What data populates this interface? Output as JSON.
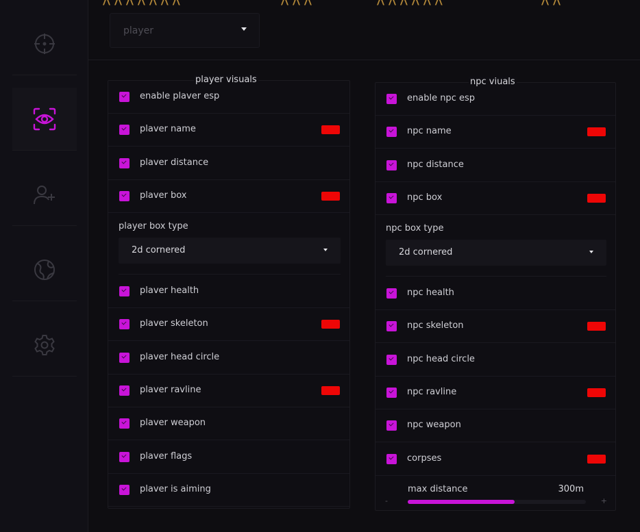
{
  "accent_color": "#c814d8",
  "swatch_color": "#ee0606",
  "sidebar": {
    "items": [
      {
        "icon": "crosshair-icon",
        "active": false
      },
      {
        "icon": "eye-scan-icon",
        "active": true
      },
      {
        "icon": "user-plus-icon",
        "active": false
      },
      {
        "icon": "globe-icon",
        "active": false
      },
      {
        "icon": "gear-icon",
        "active": false
      }
    ]
  },
  "header": {
    "dropdown_value": "player"
  },
  "player_panel": {
    "title": "player visuals",
    "rows_top": [
      {
        "label": "enable plaver esp",
        "checked": true,
        "color": false
      },
      {
        "label": "plaver name",
        "checked": true,
        "color": true
      },
      {
        "label": "plaver distance",
        "checked": true,
        "color": false
      },
      {
        "label": "plaver box",
        "checked": true,
        "color": true
      }
    ],
    "box_type_label": "player box type",
    "box_type_value": "2d cornered",
    "rows_bottom": [
      {
        "label": "plaver health",
        "checked": true,
        "color": false
      },
      {
        "label": "plaver skeleton",
        "checked": true,
        "color": true
      },
      {
        "label": "plaver head circle",
        "checked": true,
        "color": false
      },
      {
        "label": "plaver ravline",
        "checked": true,
        "color": true
      },
      {
        "label": "plaver weapon",
        "checked": true,
        "color": false
      },
      {
        "label": "plaver flags",
        "checked": true,
        "color": false
      },
      {
        "label": "plaver is aiming",
        "checked": true,
        "color": false
      }
    ]
  },
  "npc_panel": {
    "title": "npc viuals",
    "rows_top": [
      {
        "label": "enable npc esp",
        "checked": true,
        "color": false
      },
      {
        "label": "npc name",
        "checked": true,
        "color": true
      },
      {
        "label": "npc distance",
        "checked": true,
        "color": false
      },
      {
        "label": "npc box",
        "checked": true,
        "color": true
      }
    ],
    "box_type_label": "npc box type",
    "box_type_value": "2d cornered",
    "rows_bottom": [
      {
        "label": "npc health",
        "checked": true,
        "color": false
      },
      {
        "label": "npc skeleton",
        "checked": true,
        "color": true
      },
      {
        "label": "npc head circle",
        "checked": true,
        "color": false
      },
      {
        "label": "npc ravline",
        "checked": true,
        "color": true
      },
      {
        "label": "npc weapon",
        "checked": true,
        "color": false
      },
      {
        "label": "corpses",
        "checked": true,
        "color": true
      }
    ],
    "slider": {
      "label": "max distance",
      "value_text": "300m",
      "fraction": 0.6,
      "minus": "-",
      "plus": "+"
    }
  }
}
